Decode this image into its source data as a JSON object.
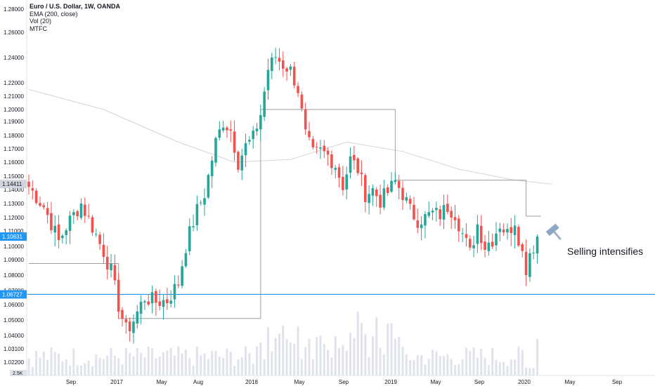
{
  "legend": {
    "title": "Euro / U.S. Dollar, 1W, OANDA",
    "line2": "EMA (200, close)",
    "line3": "Vol (20)",
    "line4": "MTFC"
  },
  "annotation": {
    "text": "Selling intensifies",
    "icon": "hammer-icon"
  },
  "colors": {
    "up": "#26a69a",
    "down": "#ef5350",
    "ema": "#d1d4dc",
    "mtfc": "#9e9e9e",
    "hline": "#2196f3",
    "volume": "#e0e3eb",
    "price_tag": "#2196f3",
    "label_tag": "#d1d4dc"
  },
  "chart_data": {
    "type": "candlestick",
    "symbol": "Euro / U.S. Dollar",
    "interval": "1W",
    "yticks": [
      "1.28000",
      "1.26000",
      "1.24000",
      "1.22000",
      "1.21000",
      "1.20000",
      "1.19000",
      "1.18000",
      "1.17000",
      "1.16000",
      "1.15000",
      "1.14000",
      "1.13000",
      "1.12000",
      "1.11000",
      "1.10000",
      "1.09000",
      "1.08000",
      "1.07000",
      "1.06000",
      "1.05000",
      "1.04000",
      "1.03100",
      "1.02200"
    ],
    "xticks": [
      "Sep",
      "2017",
      "May",
      "Aug",
      "2018",
      "May",
      "Sep",
      "2019",
      "May",
      "Sep",
      "2020",
      "May",
      "Sep"
    ],
    "price_labels": [
      {
        "text": "1.14411",
        "value": 1.14411,
        "style": "grey"
      },
      {
        "text": "1.10631",
        "value": 1.10631,
        "style": "blue"
      },
      {
        "text": "1.06727",
        "value": 1.06727,
        "style": "blue"
      }
    ],
    "volume_axis_label": "2.5K",
    "horizontal_line": 1.06727,
    "ema": [
      [
        0,
        1.215
      ],
      [
        20,
        1.2
      ],
      [
        40,
        1.175
      ],
      [
        55,
        1.16
      ],
      [
        70,
        1.162
      ],
      [
        85,
        1.175
      ],
      [
        100,
        1.168
      ],
      [
        115,
        1.155
      ],
      [
        130,
        1.147
      ],
      [
        140,
        1.144
      ]
    ],
    "mtfc": [
      [
        0,
        1.0875
      ],
      [
        22,
        1.0875
      ],
      [
        24,
        1.051
      ],
      [
        60,
        1.051
      ],
      [
        62,
        1.2
      ],
      [
        96,
        1.2
      ],
      [
        98,
        1.147
      ],
      [
        131,
        1.147
      ],
      [
        133,
        1.121
      ],
      [
        137,
        1.121
      ]
    ],
    "anchors": [
      [
        0,
        1.142
      ],
      [
        4,
        1.128
      ],
      [
        8,
        1.103
      ],
      [
        11,
        1.118
      ],
      [
        14,
        1.13
      ],
      [
        17,
        1.113
      ],
      [
        20,
        1.096
      ],
      [
        22,
        1.082
      ],
      [
        24,
        1.06
      ],
      [
        26,
        1.043
      ],
      [
        28,
        1.05
      ],
      [
        31,
        1.065
      ],
      [
        34,
        1.062
      ],
      [
        37,
        1.063
      ],
      [
        40,
        1.075
      ],
      [
        42,
        1.1
      ],
      [
        45,
        1.125
      ],
      [
        47,
        1.137
      ],
      [
        50,
        1.175
      ],
      [
        52,
        1.19
      ],
      [
        54,
        1.184
      ],
      [
        56,
        1.16
      ],
      [
        58,
        1.172
      ],
      [
        60,
        1.178
      ],
      [
        62,
        1.196
      ],
      [
        64,
        1.231
      ],
      [
        66,
        1.241
      ],
      [
        68,
        1.234
      ],
      [
        70,
        1.23
      ],
      [
        72,
        1.215
      ],
      [
        74,
        1.18
      ],
      [
        76,
        1.166
      ],
      [
        78,
        1.168
      ],
      [
        80,
        1.165
      ],
      [
        82,
        1.158
      ],
      [
        84,
        1.143
      ],
      [
        86,
        1.162
      ],
      [
        88,
        1.155
      ],
      [
        90,
        1.137
      ],
      [
        92,
        1.14
      ],
      [
        94,
        1.132
      ],
      [
        96,
        1.138
      ],
      [
        98,
        1.146
      ],
      [
        100,
        1.137
      ],
      [
        102,
        1.125
      ],
      [
        104,
        1.118
      ],
      [
        106,
        1.12
      ],
      [
        108,
        1.123
      ],
      [
        110,
        1.122
      ],
      [
        112,
        1.128
      ],
      [
        114,
        1.123
      ],
      [
        116,
        1.108
      ],
      [
        118,
        1.095
      ],
      [
        120,
        1.115
      ],
      [
        122,
        1.1
      ],
      [
        124,
        1.105
      ],
      [
        126,
        1.115
      ],
      [
        128,
        1.108
      ],
      [
        130,
        1.118
      ],
      [
        132,
        1.095
      ],
      [
        133,
        1.085
      ],
      [
        134,
        1.096
      ],
      [
        135,
        1.1
      ],
      [
        136,
        1.106
      ]
    ]
  }
}
